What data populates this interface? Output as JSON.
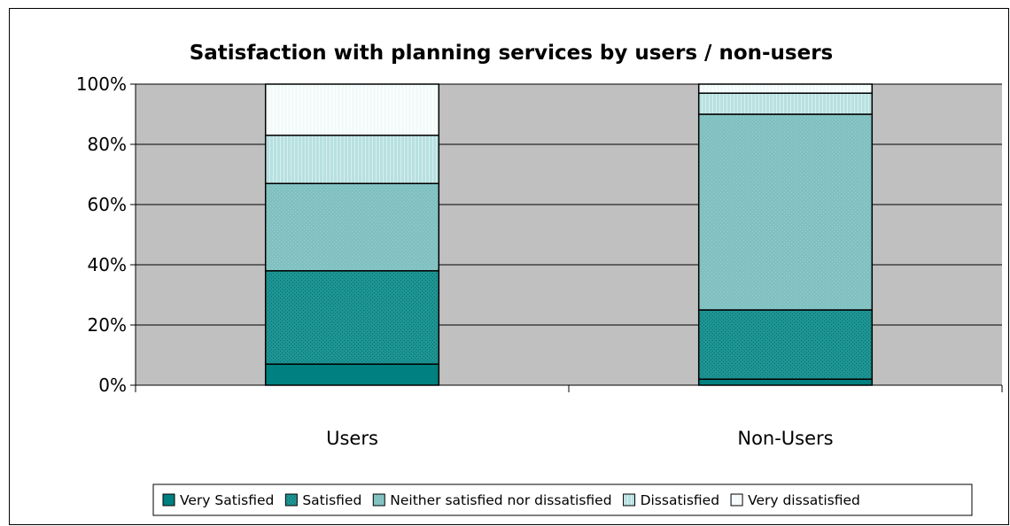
{
  "chart_data": {
    "type": "bar",
    "stacked": true,
    "percent_stacked": true,
    "title": "Satisfaction with planning services by users / non-users",
    "categories": [
      "Users",
      "Non-Users"
    ],
    "series": [
      {
        "name": "Very Satisfied",
        "values": [
          7,
          2
        ],
        "color": "#008080",
        "pattern": "none"
      },
      {
        "name": "Satisfied",
        "values": [
          31,
          23
        ],
        "color": "#1e9494",
        "pattern": "dots"
      },
      {
        "name": "Neither satisfied nor dissatisfied",
        "values": [
          29,
          65
        ],
        "color": "#80c0c0",
        "pattern": "fine"
      },
      {
        "name": "Dissatisfied",
        "values": [
          16,
          7
        ],
        "color": "#b8e0e0",
        "pattern": "vlines"
      },
      {
        "name": "Very dissatisfied",
        "values": [
          17,
          3
        ],
        "color": "#f2fafa",
        "pattern": "vlines"
      }
    ],
    "yticks": [
      "0%",
      "20%",
      "40%",
      "60%",
      "80%",
      "100%"
    ],
    "ylim": [
      0,
      100
    ],
    "grid": true,
    "plot_background": "#c0c0c0",
    "legend": "bottom"
  }
}
